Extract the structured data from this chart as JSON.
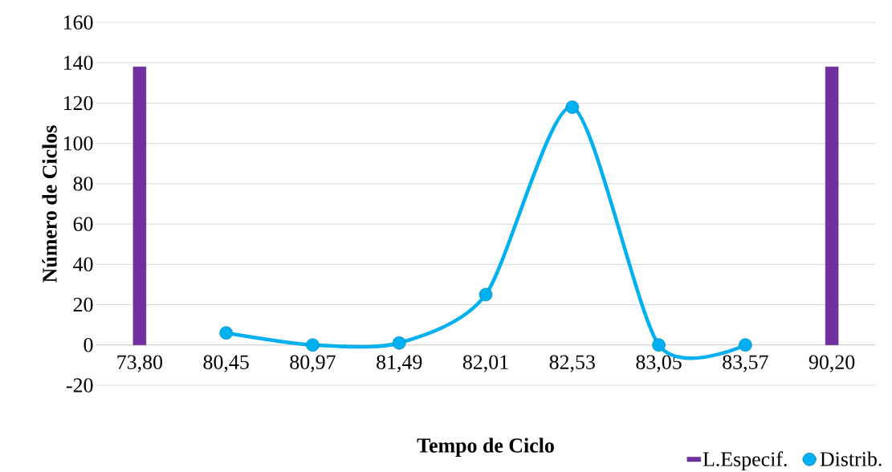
{
  "chart_data": {
    "type": "bar",
    "xlabel": "Tempo de Ciclo",
    "ylabel": "Número de Ciclos",
    "categories": [
      "73,80",
      "80,45",
      "80,97",
      "81,49",
      "82,01",
      "82,53",
      "83,05",
      "83,57",
      "90,20"
    ],
    "series": [
      {
        "name": "L.Especif.",
        "color": "#7030a0",
        "values": [
          138,
          null,
          null,
          null,
          null,
          null,
          null,
          null,
          138
        ]
      },
      {
        "name": "Distrib.",
        "type": "line",
        "color": "#00b0f0",
        "values": [
          null,
          6,
          0,
          1,
          25,
          118,
          0,
          0,
          null
        ]
      }
    ],
    "ylim": [
      -20,
      160
    ],
    "yticks": [
      -20,
      0,
      20,
      40,
      60,
      80,
      100,
      120,
      140,
      160
    ],
    "grid": "y",
    "legend": "bottom right",
    "marker": "circle"
  }
}
